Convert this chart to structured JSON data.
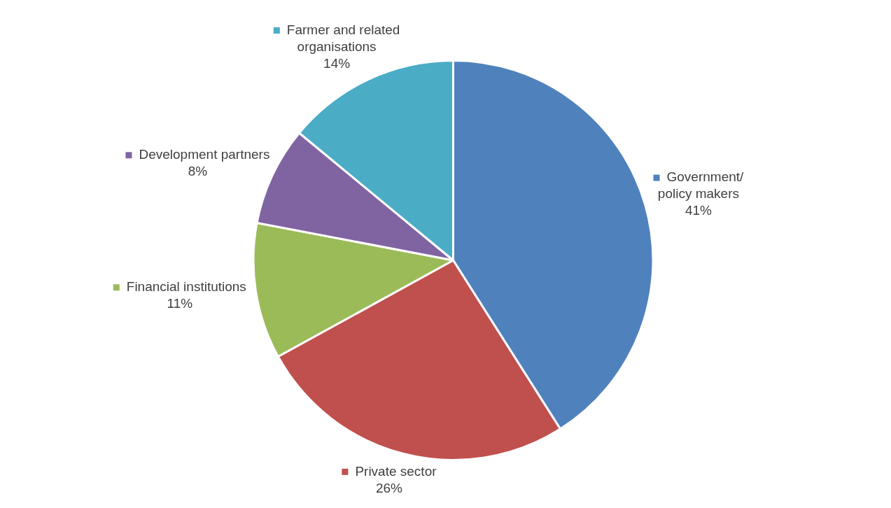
{
  "chart_data": {
    "type": "pie",
    "categories": [
      "Government/\npolicy makers",
      "Private sector",
      "Financial institutions",
      "Development partners",
      "Farmer and related\norganisations"
    ],
    "values": [
      41,
      26,
      11,
      8,
      14
    ],
    "colors": [
      "#4f81bd",
      "#c0504d",
      "#9bbb59",
      "#8064a2",
      "#4bacc6"
    ],
    "value_labels": [
      "41%",
      "26%",
      "11%",
      "8%",
      "14%"
    ],
    "legend": "top left"
  }
}
